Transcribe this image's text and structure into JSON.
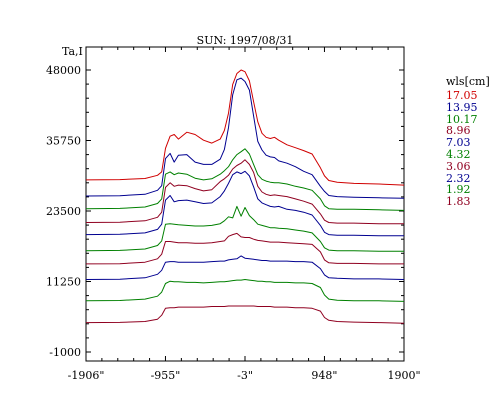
{
  "chart_data": {
    "type": "line",
    "title": "SUN: 1997/08/31",
    "ylabel": "Ta,I",
    "xlim": [
      -1906,
      1900
    ],
    "ylim": [
      -1000,
      48000
    ],
    "x_ticks": [
      -1906,
      -955,
      -3,
      948,
      1900
    ],
    "x_tick_labels": [
      "-1906\"",
      "-955\"",
      "-3\"",
      "948\"",
      "1900\""
    ],
    "y_ticks": [
      -1000,
      11250,
      23500,
      35750,
      48000
    ],
    "y_tick_labels": [
      "-1000",
      "11250",
      "23500",
      "35750",
      "48000"
    ],
    "grid": false,
    "legend": {
      "title": "wls[cm]",
      "placement": "right",
      "entries": [
        {
          "label": "17.05",
          "color": "#d00000"
        },
        {
          "label": "13.95",
          "color": "#000090"
        },
        {
          "label": "10.17",
          "color": "#008000"
        },
        {
          "label": "8.96",
          "color": "#900020"
        },
        {
          "label": "7.03",
          "color": "#000090"
        },
        {
          "label": "4.32",
          "color": "#008000"
        },
        {
          "label": "3.06",
          "color": "#900020"
        },
        {
          "label": "2.32",
          "color": "#000090"
        },
        {
          "label": "1.92",
          "color": "#008000"
        },
        {
          "label": "1.83",
          "color": "#900020"
        }
      ]
    },
    "x": [
      -1906,
      -1500,
      -1200,
      -1050,
      -1000,
      -955,
      -900,
      -850,
      -800,
      -700,
      -600,
      -500,
      -400,
      -300,
      -250,
      -200,
      -150,
      -100,
      -50,
      -3,
      50,
      100,
      150,
      200,
      250,
      300,
      350,
      400,
      500,
      600,
      700,
      800,
      900,
      948,
      1000,
      1100,
      1300,
      1600,
      1900
    ],
    "series": [
      {
        "name": "17.05",
        "color": "#d00000",
        "values": [
          28900,
          28950,
          29150,
          29700,
          30300,
          34400,
          36500,
          36800,
          36000,
          37200,
          36800,
          35800,
          35300,
          36000,
          37500,
          40500,
          45500,
          47400,
          48000,
          47700,
          46100,
          42500,
          39000,
          37000,
          36300,
          36100,
          36300,
          35800,
          35000,
          34500,
          34000,
          33400,
          31000,
          29600,
          28800,
          28500,
          28300,
          28200,
          28000
        ]
      },
      {
        "name": "13.95",
        "color": "#000090",
        "values": [
          26100,
          26150,
          26400,
          27100,
          27900,
          32600,
          33500,
          32000,
          33200,
          33300,
          32000,
          31600,
          31600,
          32500,
          34200,
          38000,
          43700,
          46300,
          46600,
          46000,
          44500,
          40000,
          35600,
          34100,
          33200,
          32900,
          32800,
          32200,
          31800,
          31200,
          30400,
          29800,
          27800,
          26900,
          26200,
          26000,
          25900,
          25800,
          25700
        ]
      },
      {
        "name": "10.17",
        "color": "#008000",
        "values": [
          23900,
          23950,
          24200,
          24800,
          25600,
          29900,
          30300,
          29800,
          30100,
          29900,
          29200,
          28900,
          29100,
          29900,
          30500,
          31200,
          32400,
          33300,
          33800,
          34300,
          33400,
          31600,
          29800,
          29000,
          28700,
          28500,
          28400,
          28400,
          28200,
          27800,
          27500,
          27100,
          25600,
          24400,
          23900,
          23800,
          23800,
          23700,
          23600
        ]
      },
      {
        "name": "8.96",
        "color": "#900020",
        "values": [
          21500,
          21550,
          21800,
          22400,
          23300,
          27600,
          28400,
          27800,
          28000,
          27900,
          27400,
          27000,
          27200,
          28600,
          29100,
          29700,
          30800,
          31400,
          31800,
          32400,
          31600,
          30200,
          27800,
          26800,
          26400,
          26200,
          26300,
          26200,
          26000,
          25600,
          25200,
          24700,
          23000,
          21900,
          21500,
          21400,
          21400,
          21300,
          21300
        ]
      },
      {
        "name": "7.03",
        "color": "#000090",
        "values": [
          19400,
          19450,
          19700,
          20300,
          21200,
          25400,
          26200,
          25100,
          25300,
          25400,
          25100,
          24800,
          24900,
          26000,
          27000,
          28300,
          29800,
          30300,
          30000,
          30400,
          29600,
          27700,
          25600,
          24900,
          24600,
          24300,
          24200,
          24300,
          23800,
          23600,
          23300,
          22800,
          21000,
          19800,
          19400,
          19300,
          19300,
          19200,
          19200
        ]
      },
      {
        "name": "4.32",
        "color": "#008000",
        "values": [
          16600,
          16650,
          16900,
          17500,
          18300,
          21200,
          21300,
          21200,
          21100,
          21000,
          20900,
          20900,
          21000,
          21300,
          21800,
          22500,
          22300,
          24300,
          22600,
          24100,
          22700,
          22000,
          21200,
          21000,
          20800,
          20600,
          20600,
          20500,
          20400,
          20200,
          20000,
          19700,
          18200,
          17100,
          16700,
          16600,
          16600,
          16500,
          16500
        ]
      },
      {
        "name": "3.06",
        "color": "#900020",
        "values": [
          14300,
          14350,
          14600,
          15200,
          16000,
          18200,
          18200,
          18100,
          18000,
          18000,
          17900,
          17900,
          18000,
          18200,
          18300,
          19100,
          19400,
          19600,
          19000,
          18900,
          18900,
          18600,
          18400,
          18300,
          18200,
          18100,
          18100,
          18100,
          18000,
          17900,
          17800,
          17700,
          16400,
          15000,
          14500,
          14400,
          14400,
          14300,
          14300
        ]
      },
      {
        "name": "2.32",
        "color": "#000090",
        "values": [
          11600,
          11650,
          11900,
          12500,
          13200,
          14600,
          14700,
          14700,
          14600,
          14600,
          14600,
          14600,
          14700,
          14800,
          14800,
          15000,
          15100,
          15200,
          15700,
          15300,
          15200,
          15100,
          15000,
          14900,
          14900,
          14800,
          14800,
          14800,
          14800,
          14700,
          14700,
          14600,
          13500,
          12400,
          11900,
          11800,
          11700,
          11700,
          11600
        ]
      },
      {
        "name": "1.92",
        "color": "#008000",
        "values": [
          7900,
          7950,
          8200,
          8700,
          9400,
          10900,
          11300,
          11200,
          11200,
          11100,
          11100,
          11000,
          11100,
          11200,
          11200,
          11300,
          11400,
          11500,
          11500,
          11600,
          11500,
          11400,
          11300,
          11300,
          11200,
          11200,
          11100,
          11100,
          11100,
          11000,
          11000,
          10900,
          10200,
          8900,
          8200,
          8000,
          7900,
          7900,
          7800
        ]
      },
      {
        "name": "1.83",
        "color": "#900020",
        "values": [
          4100,
          4150,
          4300,
          4700,
          5400,
          6600,
          6700,
          6700,
          6800,
          6800,
          6800,
          6800,
          6900,
          6900,
          6900,
          7000,
          7000,
          7000,
          7000,
          7000,
          7000,
          7000,
          6900,
          6900,
          6900,
          6900,
          6800,
          6800,
          6800,
          6700,
          6700,
          6600,
          6100,
          5000,
          4500,
          4300,
          4200,
          4100,
          4000
        ]
      }
    ]
  }
}
